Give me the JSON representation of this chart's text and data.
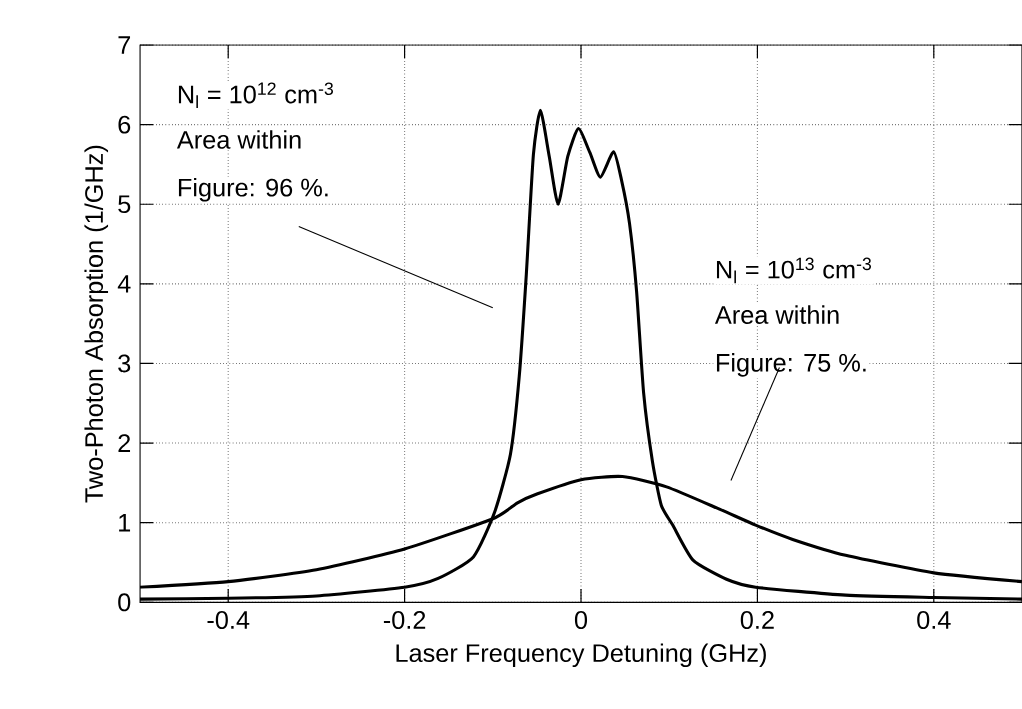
{
  "chart_data": {
    "type": "line",
    "xlabel": "Laser Frequency Detuning    (GHz)",
    "ylabel": "Two-Photon Absorption    (1/GHz)",
    "xlim": [
      -0.5,
      0.5
    ],
    "ylim": [
      0,
      7
    ],
    "xticks": [
      -0.4,
      -0.2,
      0,
      0.2,
      0.4
    ],
    "yticks": [
      0,
      1,
      2,
      3,
      4,
      5,
      6,
      7
    ],
    "grid": true,
    "line_style": "solid",
    "marker": "none",
    "series": [
      {
        "color": "#000000",
        "x": [
          -0.5,
          -0.4,
          -0.3,
          -0.2,
          -0.162,
          -0.122,
          -0.098,
          -0.08,
          -0.07,
          -0.062,
          -0.054,
          -0.046,
          -0.036,
          -0.026,
          -0.015,
          -0.003,
          0.01,
          0.022,
          0.037,
          0.046,
          0.055,
          0.063,
          0.071,
          0.081,
          0.091,
          0.104,
          0.127,
          0.165,
          0.198,
          0.3,
          0.4,
          0.5
        ],
        "values": [
          0.04,
          0.05,
          0.08,
          0.19,
          0.3,
          0.57,
          1.13,
          1.86,
          2.84,
          4.12,
          5.62,
          6.18,
          5.6,
          5.0,
          5.6,
          5.95,
          5.65,
          5.34,
          5.66,
          5.3,
          4.76,
          3.91,
          2.63,
          1.77,
          1.22,
          0.97,
          0.53,
          0.29,
          0.19,
          0.09,
          0.06,
          0.04
        ]
      },
      {
        "color": "#000000",
        "x": [
          -0.5,
          -0.4,
          -0.3,
          -0.2,
          -0.1,
          -0.072,
          -0.05,
          0.0,
          0.047,
          0.097,
          0.157,
          0.198,
          0.24,
          0.3,
          0.4,
          0.5
        ],
        "values": [
          0.19,
          0.26,
          0.41,
          0.67,
          1.05,
          1.25,
          1.36,
          1.54,
          1.58,
          1.45,
          1.17,
          0.97,
          0.79,
          0.59,
          0.37,
          0.26
        ]
      }
    ],
    "annotations": [
      "N$_{l}$ = 10$^{12}$ cm$^{-3}$",
      "Area within",
      "Figure: 96 %.",
      "N$_{l}$ = 10$^{13}$ cm$^{-3}$",
      "Area within",
      "Figure: 75 %."
    ]
  }
}
